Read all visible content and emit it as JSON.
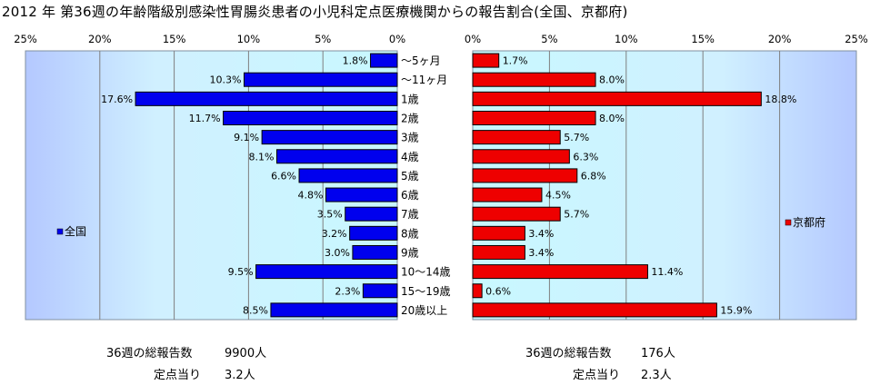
{
  "title": "2012 年 第36週の年齢階級別感染性胃腸炎患者の小児科定点医療機関からの報告割合(全国、京都府)",
  "chart_data": {
    "type": "bar",
    "orientation": "horizontal-butterfly",
    "categories": [
      "～5ヶ月",
      "～11ヶ月",
      "1歳",
      "2歳",
      "3歳",
      "4歳",
      "5歳",
      "6歳",
      "7歳",
      "8歳",
      "9歳",
      "10～14歳",
      "15～19歳",
      "20歳以上"
    ],
    "series": [
      {
        "name": "全国",
        "side": "left",
        "color": "#0000ee",
        "values": [
          1.8,
          10.3,
          17.6,
          11.7,
          9.1,
          8.1,
          6.6,
          4.8,
          3.5,
          3.2,
          3.0,
          9.5,
          2.3,
          8.5
        ],
        "labels": [
          "1.8%",
          "10.3%",
          "17.6%",
          "11.7%",
          "9.1%",
          "8.1%",
          "6.6%",
          "4.8%",
          "3.5%",
          "3.2%",
          "3.0%",
          "9.5%",
          "2.3%",
          "8.5%"
        ]
      },
      {
        "name": "京都府",
        "side": "right",
        "color": "#ee0000",
        "values": [
          1.7,
          8.0,
          18.8,
          8.0,
          5.7,
          6.3,
          6.8,
          4.5,
          5.7,
          3.4,
          3.4,
          11.4,
          0.6,
          15.9
        ],
        "labels": [
          "1.7%",
          "8.0%",
          "18.8%",
          "8.0%",
          "5.7%",
          "6.3%",
          "6.8%",
          "4.5%",
          "5.7%",
          "3.4%",
          "3.4%",
          "11.4%",
          "0.6%",
          "15.9%"
        ]
      }
    ],
    "xlim": [
      0,
      25
    ],
    "xticks": [
      25,
      20,
      15,
      10,
      5,
      0
    ],
    "xtick_labels_left": [
      "25%",
      "20%",
      "15%",
      "10%",
      "5%",
      "0%"
    ],
    "xtick_labels_right": [
      "0%",
      "5%",
      "10%",
      "15%",
      "20%",
      "25%"
    ],
    "grid": true,
    "legend_left": "全国",
    "legend_right": "京都府",
    "plot_background": "light-blue gradient"
  },
  "footer": {
    "left": {
      "total_label": "36週の総報告数",
      "total_value": "9900人",
      "per_label": "定点当り",
      "per_value": "3.2人"
    },
    "right": {
      "total_label": "36週の総報告数",
      "total_value": "176人",
      "per_label": "定点当り",
      "per_value": "2.3人"
    }
  }
}
